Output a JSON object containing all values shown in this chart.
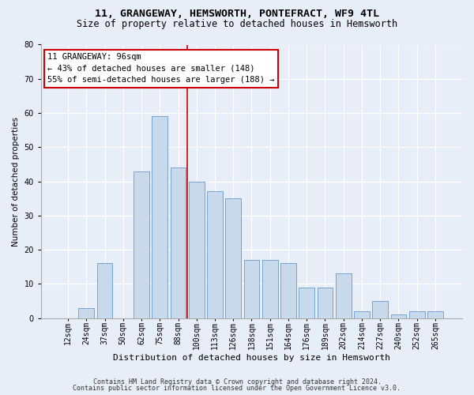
{
  "title_line1": "11, GRANGEWAY, HEMSWORTH, PONTEFRACT, WF9 4TL",
  "title_line2": "Size of property relative to detached houses in Hemsworth",
  "xlabel": "Distribution of detached houses by size in Hemsworth",
  "ylabel": "Number of detached properties",
  "categories": [
    "12sqm",
    "24sqm",
    "37sqm",
    "50sqm",
    "62sqm",
    "75sqm",
    "88sqm",
    "100sqm",
    "113sqm",
    "126sqm",
    "138sqm",
    "151sqm",
    "164sqm",
    "176sqm",
    "189sqm",
    "202sqm",
    "214sqm",
    "227sqm",
    "240sqm",
    "252sqm",
    "265sqm"
  ],
  "values": [
    0,
    3,
    16,
    0,
    43,
    59,
    44,
    40,
    37,
    35,
    17,
    17,
    16,
    9,
    9,
    13,
    2,
    5,
    1,
    2,
    2
  ],
  "bar_color": "#c9d9ec",
  "bar_edge_color": "#6699cc",
  "vline_index": 6,
  "vline_color": "#cc0000",
  "annotation_text": "11 GRANGEWAY: 96sqm\n← 43% of detached houses are smaller (148)\n55% of semi-detached houses are larger (188) →",
  "annotation_box_color": "#ffffff",
  "annotation_box_edge": "#cc0000",
  "ylim": [
    0,
    80
  ],
  "yticks": [
    0,
    10,
    20,
    30,
    40,
    50,
    60,
    70,
    80
  ],
  "footer_line1": "Contains HM Land Registry data © Crown copyright and database right 2024.",
  "footer_line2": "Contains public sector information licensed under the Open Government Licence v3.0.",
  "bg_color": "#e8eef7",
  "plot_bg_color": "#e8eef7",
  "title1_fontsize": 9.5,
  "title2_fontsize": 8.5,
  "xlabel_fontsize": 8.0,
  "ylabel_fontsize": 7.5,
  "tick_fontsize": 7.0,
  "ann_fontsize": 7.5,
  "footer_fontsize": 6.0
}
